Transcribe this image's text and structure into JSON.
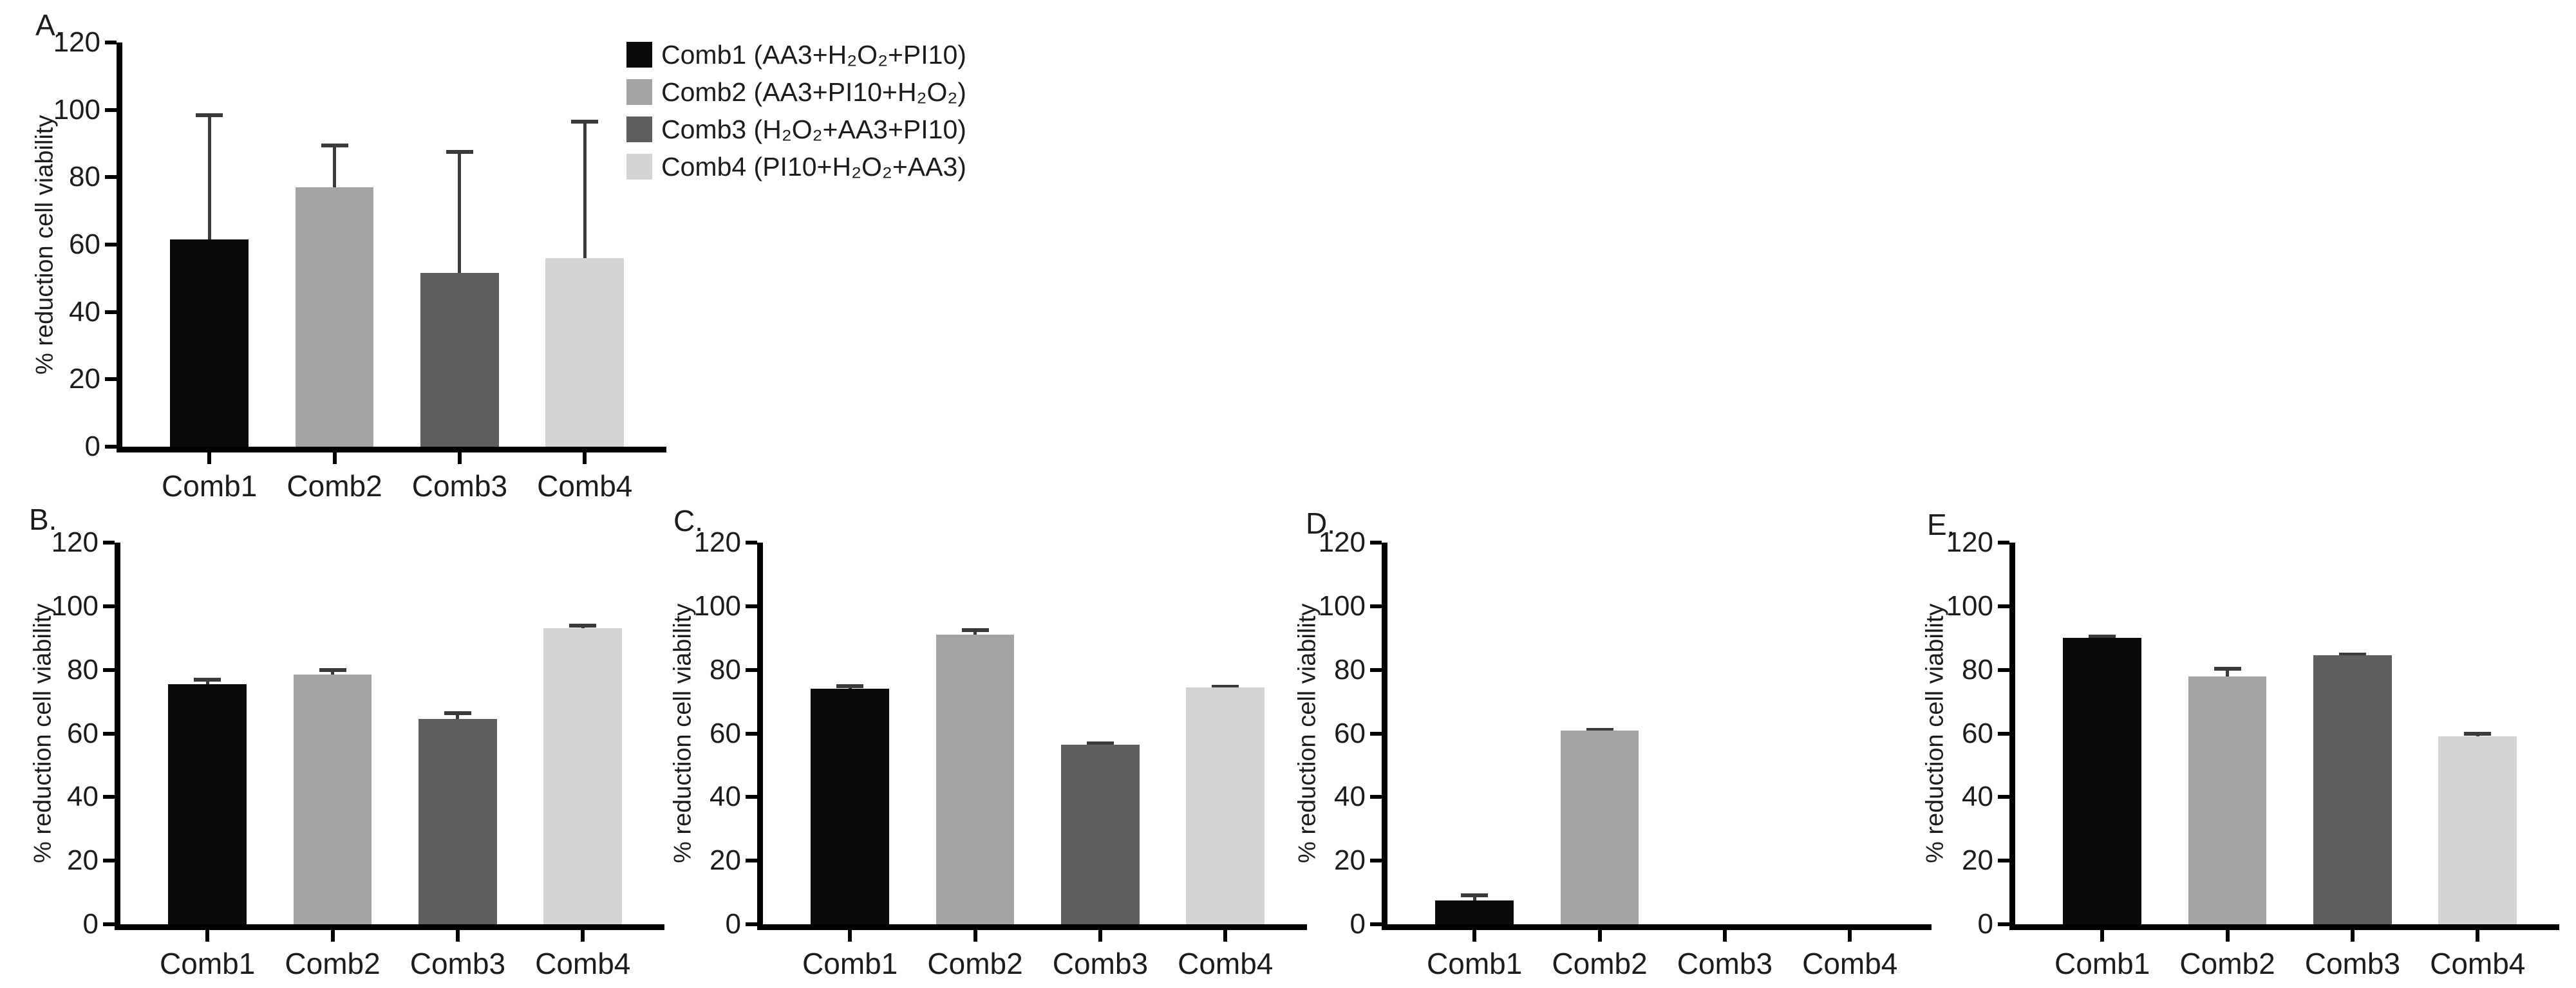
{
  "style": {
    "background": "#ffffff",
    "axis_color": "#000000",
    "text_color": "#1c1c1c",
    "error_bar_color": "#3a3a3a"
  },
  "legend": {
    "items": [
      {
        "label": "Comb1 (AA3+H₂O₂+PI10)",
        "color": "#0a0a0a"
      },
      {
        "label": "Comb2 (AA3+PI10+H₂O₂)",
        "color": "#a4a4a4"
      },
      {
        "label": "Comb3 (H₂O₂+AA3+PI10)",
        "color": "#5e5e5c"
      },
      {
        "label": "Comb4 (PI10+H₂O₂+AA3)",
        "color": "#d4d4d4"
      }
    ]
  },
  "chart_data": [
    {
      "panel": "A.",
      "type": "bar",
      "categories": [
        "Comb1",
        "Comb2",
        "Comb3",
        "Comb4"
      ],
      "values": [
        61.5,
        77,
        51.5,
        56
      ],
      "errors": [
        37.5,
        13,
        36.5,
        41
      ],
      "bar_colors": [
        "#0a0a0a",
        "#a4a4a4",
        "#5e5e5c",
        "#d4d4d4"
      ],
      "title": "",
      "xlabel": "",
      "ylabel": "% reduction cell viability",
      "ylim": [
        0,
        120
      ],
      "yticks": [
        0,
        20,
        40,
        60,
        80,
        100,
        120
      ],
      "grid": "off",
      "legend_position": "top-right"
    },
    {
      "panel": "B.",
      "type": "bar",
      "categories": [
        "Comb1",
        "Comb2",
        "Comb3",
        "Comb4"
      ],
      "values": [
        75.5,
        78.5,
        64.5,
        93
      ],
      "errors": [
        2,
        2,
        2.5,
        1.5
      ],
      "bar_colors": [
        "#0a0a0a",
        "#a4a4a4",
        "#5e5e5c",
        "#d4d4d4"
      ],
      "title": "",
      "xlabel": "",
      "ylabel": "% reduction cell viability",
      "ylim": [
        0,
        120
      ],
      "yticks": [
        0,
        20,
        40,
        60,
        80,
        100,
        120
      ],
      "grid": "off",
      "legend_position": "none"
    },
    {
      "panel": "C.",
      "type": "bar",
      "categories": [
        "Comb1",
        "Comb2",
        "Comb3",
        "Comb4"
      ],
      "values": [
        74,
        91,
        56.5,
        74.5
      ],
      "errors": [
        1.5,
        2,
        1,
        0.7
      ],
      "bar_colors": [
        "#0a0a0a",
        "#a4a4a4",
        "#5e5e5c",
        "#d4d4d4"
      ],
      "title": "",
      "xlabel": "",
      "ylabel": "% reduction cell viability",
      "ylim": [
        0,
        120
      ],
      "yticks": [
        0,
        20,
        40,
        60,
        80,
        100,
        120
      ],
      "grid": "off",
      "legend_position": "none"
    },
    {
      "panel": "D.",
      "type": "bar",
      "categories": [
        "Comb1",
        "Comb2",
        "Comb3",
        "Comb4"
      ],
      "values": [
        7.5,
        61,
        0,
        0
      ],
      "errors": [
        2.2,
        0.7,
        0,
        0
      ],
      "bar_colors": [
        "#0a0a0a",
        "#a4a4a4",
        "#5e5e5c",
        "#d4d4d4"
      ],
      "title": "",
      "xlabel": "",
      "ylabel": "% reduction cell viability",
      "ylim": [
        0,
        120
      ],
      "yticks": [
        0,
        20,
        40,
        60,
        80,
        100,
        120
      ],
      "grid": "off",
      "legend_position": "none"
    },
    {
      "panel": "E.",
      "type": "bar",
      "categories": [
        "Comb1",
        "Comb2",
        "Comb3",
        "Comb4"
      ],
      "values": [
        90,
        78,
        84.5,
        59
      ],
      "errors": [
        1,
        3,
        1,
        1.5
      ],
      "bar_colors": [
        "#0a0a0a",
        "#a4a4a4",
        "#5e5e5c",
        "#d4d4d4"
      ],
      "title": "",
      "xlabel": "",
      "ylabel": "% reduction cell viability",
      "ylim": [
        0,
        120
      ],
      "yticks": [
        0,
        20,
        40,
        60,
        80,
        100,
        120
      ],
      "grid": "off",
      "legend_position": "none"
    }
  ]
}
